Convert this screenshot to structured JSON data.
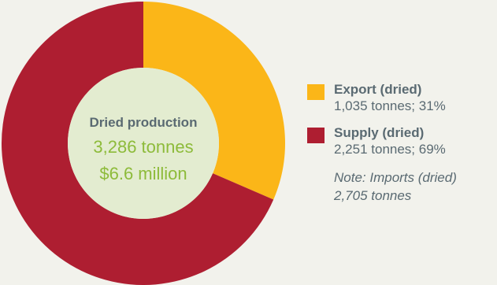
{
  "chart_data": {
    "type": "pie",
    "start": "top",
    "direction": "clockwise",
    "slices": [
      {
        "name": "Export (dried)",
        "value": 1035,
        "percent": 31,
        "label": "1,035 tonnes; 31%",
        "color": "#fbb618"
      },
      {
        "name": "Supply (dried)",
        "value": 2251,
        "percent": 69,
        "label": "2,251 tonnes; 69%",
        "color": "#ae1e31"
      }
    ],
    "center": {
      "title": "Dried production",
      "line1": "3,286 tonnes",
      "line2": "$6.6 million",
      "background": "#e3ecd0"
    },
    "note_line1": "Note: Imports (dried)",
    "note_line2": "2,705 tonnes"
  }
}
